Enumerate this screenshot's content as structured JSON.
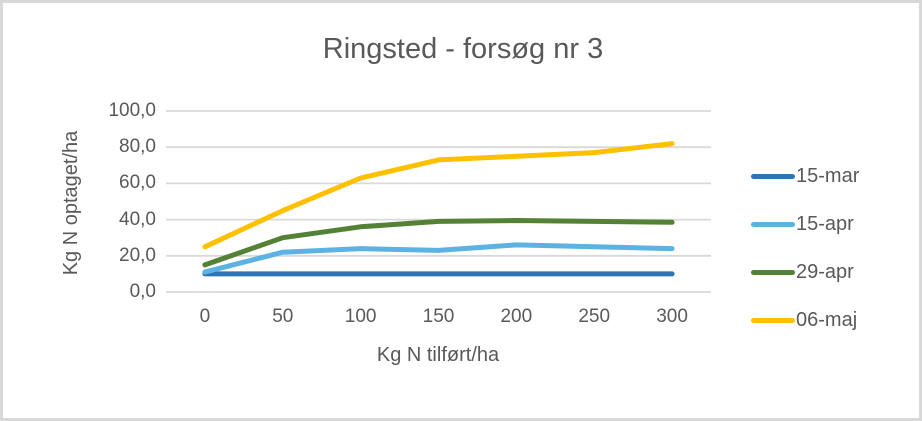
{
  "chart": {
    "title": "Ringsted - forsøg nr 3",
    "x_axis_title": "Kg N tilført/ha",
    "y_axis_title": "Kg N optaget/ha"
  },
  "colors": {
    "text_gray": "#595959",
    "gridline": "#d9d9d9",
    "frame_border": "#d8d8d8"
  },
  "chart_data": {
    "type": "line",
    "title": "Ringsted - forsøg nr 3",
    "xlabel": "Kg N tilført/ha",
    "ylabel": "Kg N optaget/ha",
    "categories": [
      "0",
      "50",
      "100",
      "150",
      "200",
      "250",
      "300"
    ],
    "y_ticks": [
      {
        "label": "0,0",
        "value": 0
      },
      {
        "label": "20,0",
        "value": 20
      },
      {
        "label": "40,0",
        "value": 40
      },
      {
        "label": "60,0",
        "value": 60
      },
      {
        "label": "80,0",
        "value": 80
      },
      {
        "label": "100,0",
        "value": 100
      }
    ],
    "ylim": [
      0,
      100
    ],
    "grid": true,
    "legend_position": "right",
    "series": [
      {
        "name": "15-mar",
        "color": "#2e75b6",
        "values": [
          10,
          10,
          10,
          10,
          10,
          10,
          10
        ]
      },
      {
        "name": "15-apr",
        "color": "#5cb2e2",
        "values": [
          11,
          22,
          24,
          23,
          26,
          25,
          24
        ]
      },
      {
        "name": "29-apr",
        "color": "#538135",
        "values": [
          15,
          30,
          36,
          39,
          39.5,
          39,
          38.5
        ]
      },
      {
        "name": "06-maj",
        "color": "#ffc000",
        "values": [
          25,
          45,
          63,
          73,
          75,
          77,
          82
        ]
      }
    ]
  }
}
